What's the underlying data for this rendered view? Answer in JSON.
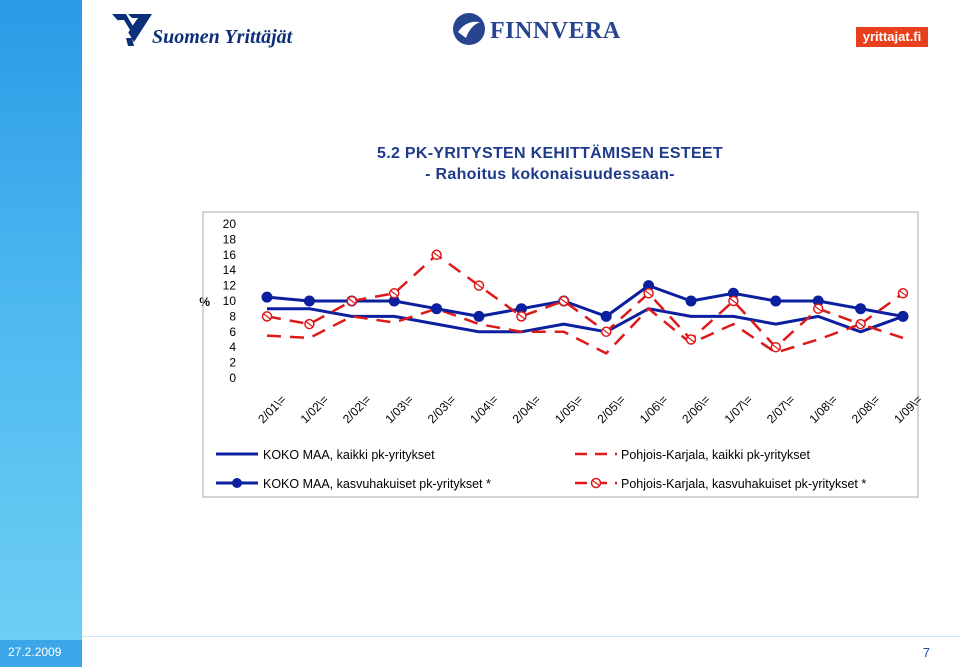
{
  "slide": {
    "title_line1": "5.2 PK-YRITYSTEN KEHITTÄMISEN ESTEET",
    "title_line2": "- Rahoitus kokonaisuudessaan-",
    "footer_date": "27.2.2009",
    "page_number": "7"
  },
  "logos": {
    "suomen_yrittajat": "Suomen Yrittäjät",
    "finnvera": "FINNVERA",
    "yrittajat_fi": "yrittajat.fi"
  },
  "colors": {
    "koko_maa": "#0c1f9e",
    "pohjois_karjala": "#dd1a1a",
    "title": "#1e3a8a",
    "sidebar": "#2a9ae6"
  },
  "chart_data": {
    "type": "line",
    "ylabel": "%",
    "ylim": [
      0,
      20
    ],
    "yticks": [
      "0",
      "2",
      "4",
      "6",
      "8",
      "10",
      "12",
      "14",
      "16",
      "18",
      "20"
    ],
    "categories": [
      "2/01\\=",
      "1/02\\=",
      "2/02\\=",
      "1/03\\=",
      "2/03\\=",
      "1/04\\=",
      "2/04\\=",
      "1/05\\=",
      "2/05\\=",
      "1/06\\=",
      "2/06\\=",
      "1/07\\=",
      "2/07\\=",
      "1/08\\=",
      "2/08\\=",
      "1/09\\="
    ],
    "grid": false,
    "legend_placement": "bottom",
    "series": [
      {
        "name": "KOKO MAA, kaikki pk-yritykset",
        "style": "solid",
        "marker": "none",
        "color": "#0c1f9e",
        "values": [
          9,
          9,
          8,
          8,
          7,
          6,
          6,
          7,
          6,
          9,
          8,
          8,
          7,
          8,
          6,
          8
        ]
      },
      {
        "name": "Pohjois-Karjala, kaikki pk-yritykset",
        "style": "dashed",
        "marker": "none",
        "color": "#dd1a1a",
        "values": [
          5.5,
          5.2,
          8,
          7.2,
          9,
          7,
          6,
          6,
          3.2,
          9,
          4.5,
          7,
          3.3,
          5,
          7,
          5.2
        ]
      },
      {
        "name": "KOKO MAA, kasvuhakuiset pk-yritykset *",
        "style": "solid",
        "marker": "filled-circle",
        "color": "#0c1f9e",
        "values": [
          10.5,
          10,
          10,
          10,
          9,
          8,
          9,
          10,
          8,
          12,
          10,
          11,
          10,
          10,
          9,
          8
        ]
      },
      {
        "name": "Pohjois-Karjala, kasvuhakuiset pk-yritykset *",
        "style": "dashed",
        "marker": "open-circle",
        "color": "#dd1a1a",
        "values": [
          8,
          7,
          10,
          11,
          16,
          12,
          8,
          10,
          6,
          11,
          5,
          10,
          4,
          9,
          7,
          11
        ]
      }
    ]
  }
}
